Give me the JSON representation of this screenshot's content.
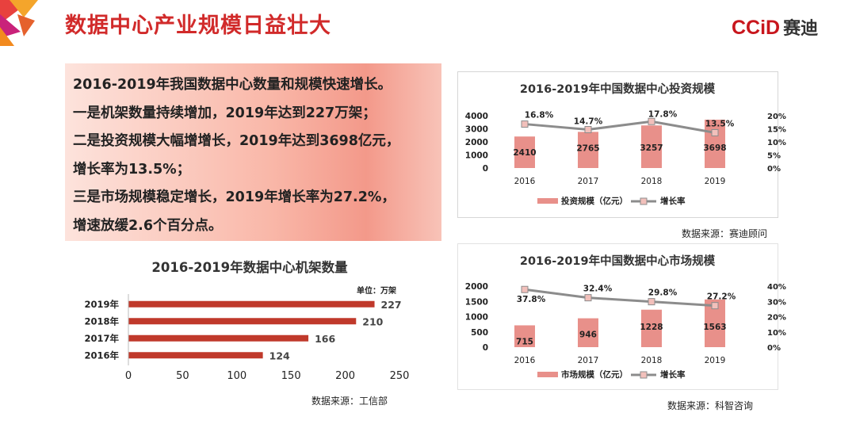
{
  "header": {
    "title": "数据中心产业规模日益壮大",
    "logo_text": "CCiD",
    "logo_cn": "赛迪"
  },
  "summary": {
    "lines": [
      "2016-2019年我国数据中心数量和规模快速增长。",
      "一是机架数量持续增加，2019年达到227万架；",
      "二是投资规模大幅增增长，2019年达到3698亿元，",
      "增长率为13.5%；",
      "三是市场规模稳定增长，2019年增长率为27.2%，",
      "增速放缓2.6个百分点。"
    ]
  },
  "colors": {
    "accent": "#d12a2a",
    "bar_red": "#c0392b",
    "bar_pink": "#e8908a",
    "line_gray": "#8c8c8c"
  },
  "sources": {
    "investment": "数据来源：赛迪顾问",
    "market": "数据来源：科智咨询",
    "racks": "数据来源：工信部"
  },
  "chart_data": [
    {
      "type": "bar",
      "title": "2016-2019年中国数据中心投资规模",
      "categories": [
        "2016",
        "2017",
        "2018",
        "2019"
      ],
      "series": [
        {
          "name": "投资规模（亿元）",
          "type": "bar",
          "axis": "left",
          "values": [
            2410,
            2765,
            3257,
            3698
          ],
          "labels": [
            "2410",
            "2765",
            "3257",
            "3698"
          ]
        },
        {
          "name": "增长率",
          "type": "line",
          "axis": "right",
          "values": [
            16.8,
            14.7,
            17.8,
            13.5
          ],
          "labels": [
            "16.8%",
            "14.7%",
            "17.8%",
            "13.5%"
          ]
        }
      ],
      "ylim": [
        0,
        4000
      ],
      "yticks": [
        "0",
        "1000",
        "2000",
        "3000",
        "4000"
      ],
      "y2lim": [
        0,
        20
      ],
      "y2ticks": [
        "0%",
        "5%",
        "10%",
        "15%",
        "20%"
      ],
      "legend": "bottom"
    },
    {
      "type": "bar",
      "title": "2016-2019年中国数据中心市场规模",
      "categories": [
        "2016",
        "2017",
        "2018",
        "2019"
      ],
      "series": [
        {
          "name": "市场规模（亿元）",
          "type": "bar",
          "axis": "left",
          "values": [
            715,
            946,
            1228,
            1563
          ],
          "labels": [
            "715",
            "946",
            "1228",
            "1563"
          ]
        },
        {
          "name": "增长率",
          "type": "line",
          "axis": "right",
          "values": [
            37.8,
            32.4,
            29.8,
            27.2
          ],
          "labels": [
            "37.8%",
            "32.4%",
            "29.8%",
            "27.2%"
          ]
        }
      ],
      "ylim": [
        0,
        2000
      ],
      "yticks": [
        "0",
        "500",
        "1000",
        "1500",
        "2000"
      ],
      "y2lim": [
        0,
        40
      ],
      "y2ticks": [
        "0%",
        "10%",
        "20%",
        "30%",
        "40%"
      ],
      "legend": "bottom"
    },
    {
      "type": "bar",
      "orientation": "horizontal",
      "title": "2016-2019年数据中心机架数量",
      "unit_label": "单位：万架",
      "categories": [
        "2019年",
        "2018年",
        "2017年",
        "2016年"
      ],
      "values": [
        227,
        210,
        166,
        124
      ],
      "labels": [
        "227",
        "210",
        "166",
        "124"
      ],
      "xlim": [
        0,
        250
      ],
      "xticks": [
        "0",
        "50",
        "100",
        "150",
        "200",
        "250"
      ]
    }
  ]
}
